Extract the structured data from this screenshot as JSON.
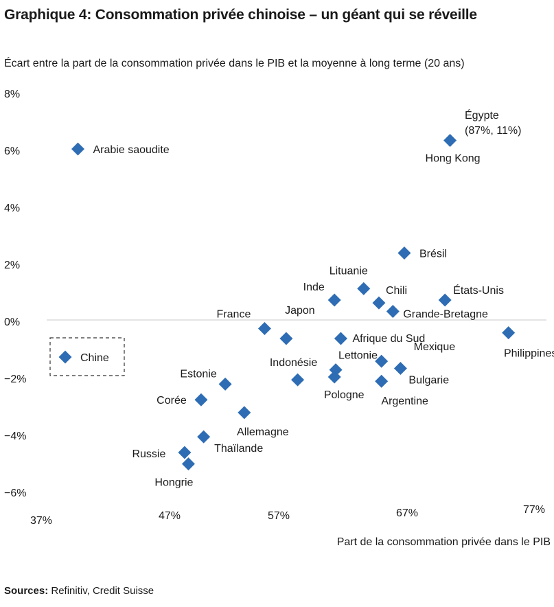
{
  "title": "Graphique 4: Consommation privée chinoise – un géant qui se réveille",
  "subtitle": "Écart entre la part de la consommation privée dans le PIB et la moyenne à long terme (20 ans)",
  "sources": {
    "label": "Sources:",
    "text": "Refinitiv, Credit Suisse"
  },
  "chart_data": {
    "type": "scatter",
    "xlabel": "Part de la consommation privée dans le PIB",
    "ylabel": "",
    "xlim": [
      37,
      77
    ],
    "ylim": [
      -6,
      8
    ],
    "x_ticks": [
      "37%",
      "47%",
      "57%",
      "67%",
      "77%"
    ],
    "y_ticks": [
      "8%",
      "6%",
      "4%",
      "2%",
      "0%",
      "−2%",
      "−4%",
      "−6%"
    ],
    "marker_color": "#2E6DB4",
    "points": [
      {
        "label": "Arabie saoudite",
        "x": 40,
        "y": 6.0
      },
      {
        "label": "Chine",
        "x": 39,
        "y": -1.3
      },
      {
        "label": "Hong Kong",
        "x": 69.3,
        "y": 6.3
      },
      {
        "label": "Brésil",
        "x": 65.7,
        "y": 2.35
      },
      {
        "label": "Lituanie",
        "x": 62.5,
        "y": 1.1
      },
      {
        "label": "Chili",
        "x": 63.7,
        "y": 0.6
      },
      {
        "label": "Inde",
        "x": 60.2,
        "y": 0.7
      },
      {
        "label": "États-Unis",
        "x": 68.9,
        "y": 0.7
      },
      {
        "label": "Grande-Bretagne",
        "x": 64.8,
        "y": 0.3
      },
      {
        "label": "France",
        "x": 54.7,
        "y": -0.3
      },
      {
        "label": "Japon",
        "x": 56.4,
        "y": -0.65
      },
      {
        "label": "Afrique du Sud",
        "x": 60.7,
        "y": -0.65
      },
      {
        "label": "Philippines",
        "x": 73.9,
        "y": -0.45
      },
      {
        "label": "Lettonie",
        "x": 60.3,
        "y": -1.75
      },
      {
        "label": "Pologne",
        "x": 60.2,
        "y": -2.0
      },
      {
        "label": "Mexique",
        "x": 63.9,
        "y": -1.45
      },
      {
        "label": "Bulgarie",
        "x": 65.4,
        "y": -1.7
      },
      {
        "label": "Argentine",
        "x": 63.9,
        "y": -2.15
      },
      {
        "label": "Indonésie",
        "x": 57.3,
        "y": -2.1
      },
      {
        "label": "Estonie",
        "x": 51.6,
        "y": -2.25
      },
      {
        "label": "Corée",
        "x": 49.7,
        "y": -2.8
      },
      {
        "label": "Allemagne",
        "x": 53.1,
        "y": -3.25
      },
      {
        "label": "Thaïlande",
        "x": 49.9,
        "y": -4.1
      },
      {
        "label": "Russie",
        "x": 48.4,
        "y": -4.65
      },
      {
        "label": "Hongrie",
        "x": 48.7,
        "y": -5.05
      }
    ],
    "annotations": [
      {
        "text": "Égypte",
        "line2": "(87%, 11%)"
      }
    ]
  }
}
